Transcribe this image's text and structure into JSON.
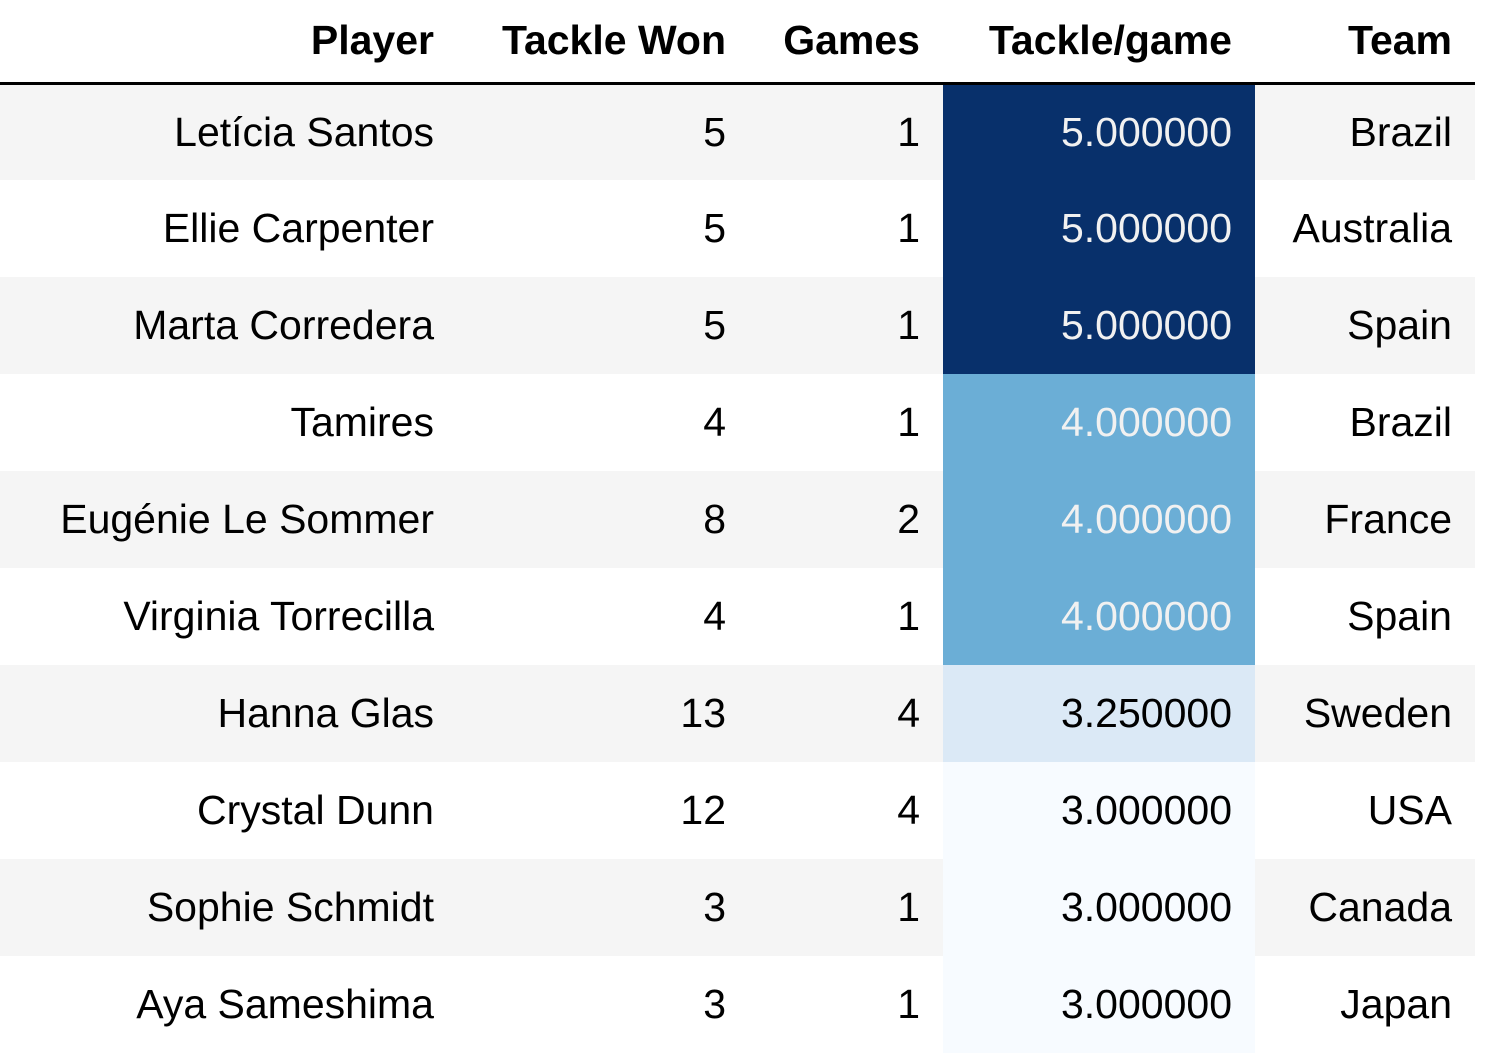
{
  "chart_data": {
    "type": "table",
    "columns": [
      "Player",
      "Tackle Won",
      "Games",
      "Tackle/game",
      "Team"
    ],
    "rows": [
      {
        "player": "Letícia Santos",
        "tackle_won": "5",
        "games": "1",
        "tackle_per_game": "5.000000",
        "team": "Brazil",
        "shade": "#08306b",
        "text_color": "#f1f1f1"
      },
      {
        "player": "Ellie Carpenter",
        "tackle_won": "5",
        "games": "1",
        "tackle_per_game": "5.000000",
        "team": "Australia",
        "shade": "#08306b",
        "text_color": "#f1f1f1"
      },
      {
        "player": "Marta Corredera",
        "tackle_won": "5",
        "games": "1",
        "tackle_per_game": "5.000000",
        "team": "Spain",
        "shade": "#08306b",
        "text_color": "#f1f1f1"
      },
      {
        "player": "Tamires",
        "tackle_won": "4",
        "games": "1",
        "tackle_per_game": "4.000000",
        "team": "Brazil",
        "shade": "#6baed6",
        "text_color": "#f1f1f1"
      },
      {
        "player": "Eugénie Le Sommer",
        "tackle_won": "8",
        "games": "2",
        "tackle_per_game": "4.000000",
        "team": "France",
        "shade": "#6baed6",
        "text_color": "#f1f1f1"
      },
      {
        "player": "Virginia Torrecilla",
        "tackle_won": "4",
        "games": "1",
        "tackle_per_game": "4.000000",
        "team": "Spain",
        "shade": "#6baed6",
        "text_color": "#f1f1f1"
      },
      {
        "player": "Hanna Glas",
        "tackle_won": "13",
        "games": "4",
        "tackle_per_game": "3.250000",
        "team": "Sweden",
        "shade": "#dbe9f6",
        "text_color": "#000000"
      },
      {
        "player": "Crystal Dunn",
        "tackle_won": "12",
        "games": "4",
        "tackle_per_game": "3.000000",
        "team": "USA",
        "shade": "#f7fbff",
        "text_color": "#000000"
      },
      {
        "player": "Sophie Schmidt",
        "tackle_won": "3",
        "games": "1",
        "tackle_per_game": "3.000000",
        "team": "Canada",
        "shade": "#f7fbff",
        "text_color": "#000000"
      },
      {
        "player": "Aya Sameshima",
        "tackle_won": "3",
        "games": "1",
        "tackle_per_game": "3.000000",
        "team": "Japan",
        "shade": "#f7fbff",
        "text_color": "#000000"
      }
    ]
  }
}
